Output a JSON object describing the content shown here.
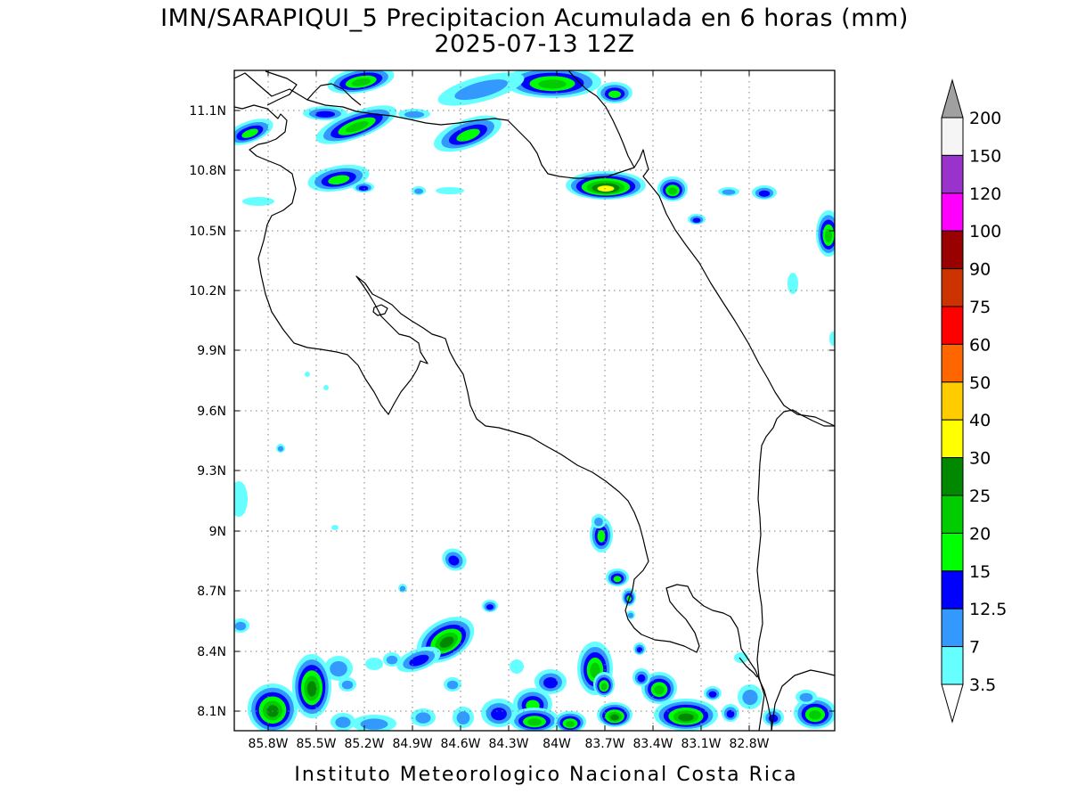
{
  "map": {
    "title_line1": "IMN/SARAPIQUI_5 Precipitacion Acumulada en 6 horas (mm)",
    "title_line2": "2025-07-13 12Z",
    "footer": "Instituto Meteorologico Nacional Costa Rica",
    "lon_ticks": [
      "85.8W",
      "85.5W",
      "85.2W",
      "84.9W",
      "84.6W",
      "84.3W",
      "84W",
      "83.7W",
      "83.4W",
      "83.1W",
      "82.8W"
    ],
    "lat_ticks": [
      "11.1N",
      "10.8N",
      "10.5N",
      "10.2N",
      "9.9N",
      "9.6N",
      "9.3N",
      "9N",
      "8.7N",
      "8.4N",
      "8.1N"
    ]
  },
  "colorbar": {
    "labels": [
      "3.5",
      "7",
      "12.5",
      "15",
      "20",
      "25",
      "30",
      "40",
      "50",
      "60",
      "75",
      "90",
      "100",
      "120",
      "150",
      "200"
    ],
    "colors": {
      "c1": "#66ffff",
      "c2": "#3399ff",
      "c3": "#0000ff",
      "c4": "#00ff00",
      "c5": "#00cc00",
      "c6": "#008800",
      "c7": "#ffff00",
      "c8": "#ffcc00",
      "c9": "#ff6600",
      "c10": "#ff0000",
      "c11": "#cc3300",
      "c12": "#990000",
      "c13": "#ff00ff",
      "c14": "#9933cc",
      "c15": "#f5f5f5",
      "top": "#a0a0a0"
    }
  }
}
